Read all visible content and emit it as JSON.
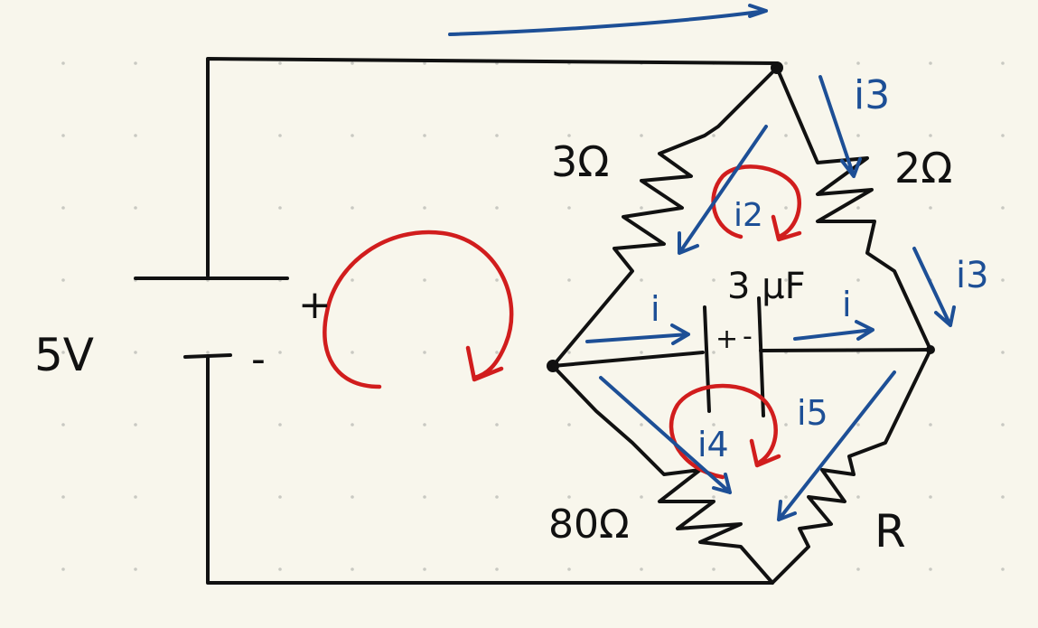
{
  "colors": {
    "background": "#f8f6ec",
    "dot_grid": "#c9c9c2",
    "wire": "#111111",
    "current_arrow": "#1d4f96",
    "loop": "#d11d1d"
  },
  "labels": {
    "source_voltage": "5V",
    "battery_plus": "+",
    "battery_minus": "-",
    "r_top_left": "3Ω",
    "r_top_right": "2Ω",
    "r_bottom_left": "80Ω",
    "r_bottom_right": "R",
    "capacitor": "3 μF",
    "cap_plus": "+",
    "cap_minus": "-",
    "current_i_left": "i",
    "current_i_right": "i",
    "current_i2": "i2",
    "current_i3_top": "i3",
    "current_i3_right": "i3",
    "current_i4": "i4",
    "current_i5": "i5"
  }
}
